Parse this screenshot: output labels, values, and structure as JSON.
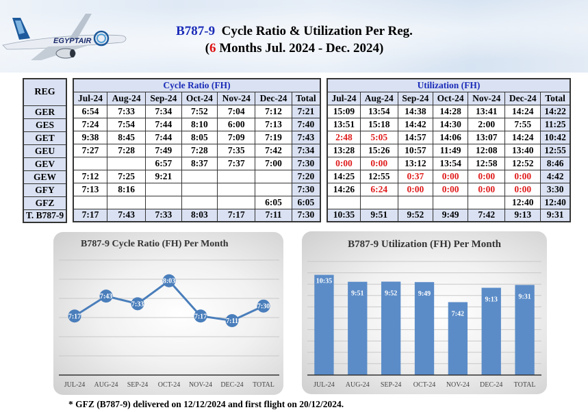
{
  "header": {
    "title_model": "B787-9",
    "title_rest": "Cycle Ratio & Utilization Per Reg.",
    "subtitle_open": "(",
    "subtitle_num": "6",
    "subtitle_rest": " Months Jul. 2024 - Dec. 2024)",
    "logo_text": "EGYPTAIR"
  },
  "reg_column": {
    "header": "REG",
    "regs": [
      "GER",
      "GES",
      "GET",
      "GEU",
      "GEV",
      "GEW",
      "GFY",
      "GFZ",
      "T. B787-9"
    ]
  },
  "cycle_ratio": {
    "title": "Cycle Ratio (FH)",
    "columns": [
      "Jul-24",
      "Aug-24",
      "Sep-24",
      "Oct-24",
      "Nov-24",
      "Dec-24",
      "Total"
    ],
    "rows": [
      [
        "6:54",
        "7:33",
        "7:34",
        "7:52",
        "7:04",
        "7:12",
        "7:21"
      ],
      [
        "7:24",
        "7:54",
        "7:44",
        "8:10",
        "6:00",
        "7:13",
        "7:40"
      ],
      [
        "9:38",
        "8:45",
        "7:44",
        "8:05",
        "7:09",
        "7:19",
        "7:43"
      ],
      [
        "7:27",
        "7:28",
        "7:49",
        "7:28",
        "7:35",
        "7:42",
        "7:34"
      ],
      [
        "",
        "",
        "6:57",
        "8:37",
        "7:37",
        "7:00",
        "7:30"
      ],
      [
        "7:12",
        "7:25",
        "9:21",
        "",
        "",
        "",
        "7:20"
      ],
      [
        "7:13",
        "8:16",
        "",
        "",
        "",
        "",
        "7:30"
      ],
      [
        "",
        "",
        "",
        "",
        "",
        "6:05",
        "6:05"
      ],
      [
        "7:17",
        "7:43",
        "7:33",
        "8:03",
        "7:17",
        "7:11",
        "7:30"
      ]
    ]
  },
  "utilization": {
    "title": "Utilization (FH)",
    "columns": [
      "Jul-24",
      "Aug-24",
      "Sep-24",
      "Oct-24",
      "Nov-24",
      "Dec-24",
      "Total"
    ],
    "rows": [
      [
        "15:09",
        "13:54",
        "14:38",
        "14:28",
        "13:41",
        "14:24",
        "14:22"
      ],
      [
        "13:51",
        "15:18",
        "14:42",
        "14:30",
        "2:00",
        "7:55",
        "11:25"
      ],
      [
        "2:48",
        "5:05",
        "14:57",
        "14:06",
        "13:07",
        "14:24",
        "10:42"
      ],
      [
        "13:28",
        "15:26",
        "10:57",
        "11:49",
        "12:08",
        "13:40",
        "12:55"
      ],
      [
        "0:00",
        "0:00",
        "13:12",
        "13:54",
        "12:58",
        "12:52",
        "8:46"
      ],
      [
        "14:25",
        "12:55",
        "0:37",
        "0:00",
        "0:00",
        "0:00",
        "4:42"
      ],
      [
        "14:26",
        "6:24",
        "0:00",
        "0:00",
        "0:00",
        "0:00",
        "3:30"
      ],
      [
        "",
        "",
        "",
        "",
        "",
        "12:40",
        "12:40"
      ],
      [
        "10:35",
        "9:51",
        "9:52",
        "9:49",
        "7:42",
        "9:13",
        "9:31"
      ]
    ],
    "highlight_red": [
      [
        2,
        0
      ],
      [
        2,
        1
      ],
      [
        4,
        0
      ],
      [
        4,
        1
      ],
      [
        5,
        2
      ],
      [
        5,
        3
      ],
      [
        5,
        4
      ],
      [
        5,
        5
      ],
      [
        6,
        1
      ],
      [
        6,
        2
      ],
      [
        6,
        3
      ],
      [
        6,
        4
      ],
      [
        6,
        5
      ]
    ],
    "highlight_color": "#e01b1b"
  },
  "chart_data": [
    {
      "type": "line",
      "title": "B787-9 Cycle Ratio (FH) Per Month",
      "categories": [
        "JUL-24",
        "AUG-24",
        "SEP-24",
        "OCT-24",
        "NOV-24",
        "DEC-24",
        "TOTAL"
      ],
      "labels": [
        "7:17",
        "7:43",
        "7:33",
        "8:03",
        "7:17",
        "7:11",
        "7:30"
      ],
      "values_minutes": [
        437,
        463,
        453,
        483,
        437,
        431,
        450
      ],
      "ylim_minutes": [
        360,
        510
      ],
      "grid": true,
      "color": "#4a7ebb",
      "xlabel": "",
      "ylabel": ""
    },
    {
      "type": "bar",
      "title": "B787-9 Utilization (FH) Per Month",
      "categories": [
        "JUL-24",
        "AUG-24",
        "SEP-24",
        "OCT-24",
        "NOV-24",
        "DEC-24",
        "TOTAL"
      ],
      "labels": [
        "10:35",
        "9:51",
        "9:52",
        "9:49",
        "7:42",
        "9:13",
        "9:31"
      ],
      "values_minutes": [
        635,
        591,
        592,
        589,
        462,
        553,
        571
      ],
      "ylim_minutes": [
        0,
        720
      ],
      "grid": true,
      "color": "#5b8cc8",
      "xlabel": "",
      "ylabel": ""
    }
  ],
  "footnote": "* GFZ (B787-9) delivered on 12/12/2024 and first flight on 20/12/2024."
}
